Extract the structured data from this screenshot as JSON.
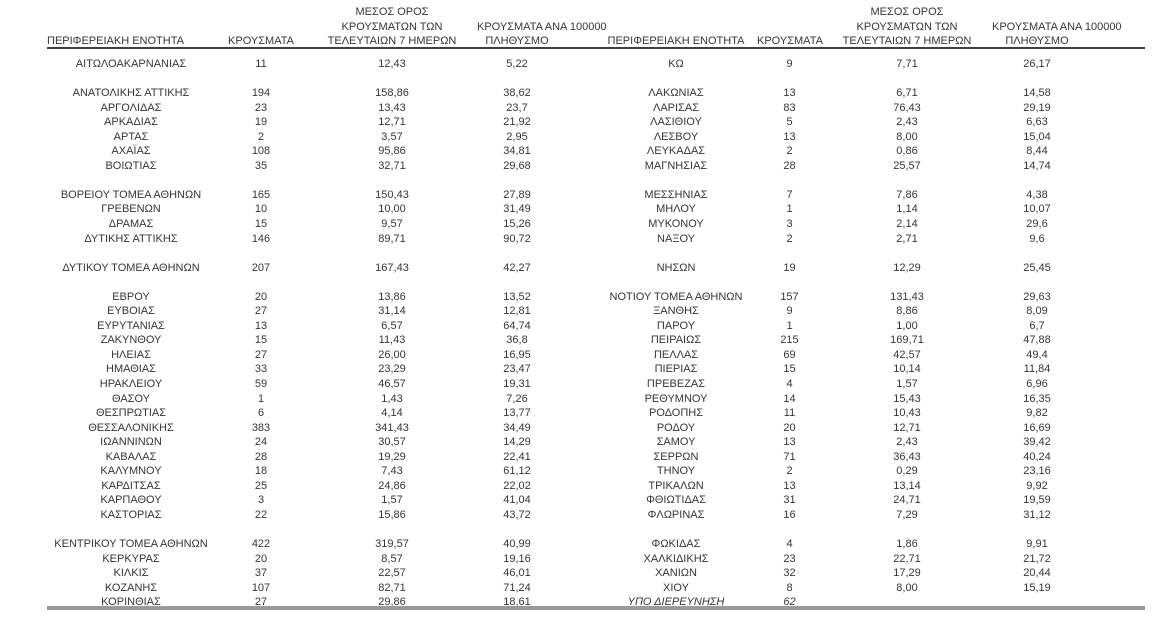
{
  "colors": {
    "background": "#ffffff",
    "text": "#363636",
    "header_rule": "#3f3f3f",
    "bottom_rule": "#9a9a9a"
  },
  "table": {
    "headers": {
      "region": "ΠΕΡΙΦΕΡΕΙΑΚΗ ΕΝΟΤΗΤΑ",
      "cases": "ΚΡΟΥΣΜΑΤΑ",
      "avg7_lines": [
        "ΜΕΣΟΣ ΟΡΟΣ",
        "ΚΡΟΥΣΜΑΤΩΝ ΤΩΝ",
        "ΤΕΛΕΥΤΑΙΩΝ 7 ΗΜΕΡΩΝ"
      ],
      "per100k_lines": [
        "ΚΡΟΥΣΜΑΤΑ ΑΝΑ 100000",
        "ΠΛΗΘΥΣΜΟ"
      ]
    },
    "rows": [
      {
        "l": [
          "ΑΙΤΩΛΟΑΚΑΡΝΑΝΙΑΣ",
          "11",
          "12,43",
          "5,22"
        ],
        "r": [
          "ΚΩ",
          "9",
          "7,71",
          "26,17"
        ]
      },
      {
        "spacer": true
      },
      {
        "l": [
          "ΑΝΑΤΟΛΙΚΗΣ ΑΤΤΙΚΗΣ",
          "194",
          "158,86",
          "38,62"
        ],
        "r": [
          "ΛΑΚΩΝΙΑΣ",
          "13",
          "6,71",
          "14,58"
        ]
      },
      {
        "l": [
          "ΑΡΓΟΛΙΔΑΣ",
          "23",
          "13,43",
          "23,7"
        ],
        "r": [
          "ΛΑΡΙΣΑΣ",
          "83",
          "76,43",
          "29,19"
        ]
      },
      {
        "l": [
          "ΑΡΚΑΔΙΑΣ",
          "19",
          "12,71",
          "21,92"
        ],
        "r": [
          "ΛΑΣΙΘΙΟΥ",
          "5",
          "2,43",
          "6,63"
        ]
      },
      {
        "l": [
          "ΑΡΤΑΣ",
          "2",
          "3,57",
          "2,95"
        ],
        "r": [
          "ΛΕΣΒΟΥ",
          "13",
          "8,00",
          "15,04"
        ]
      },
      {
        "l": [
          "ΑΧΑΪΑΣ",
          "108",
          "95,86",
          "34,81"
        ],
        "r": [
          "ΛΕΥΚΑΔΑΣ",
          "2",
          "0,86",
          "8,44"
        ]
      },
      {
        "l": [
          "ΒΟΙΩΤΙΑΣ",
          "35",
          "32,71",
          "29,68"
        ],
        "r": [
          "ΜΑΓΝΗΣΙΑΣ",
          "28",
          "25,57",
          "14,74"
        ]
      },
      {
        "spacer": true
      },
      {
        "l": [
          "ΒΟΡΕΙΟΥ ΤΟΜΕΑ ΑΘΗΝΩΝ",
          "165",
          "150,43",
          "27,89"
        ],
        "r": [
          "ΜΕΣΣΗΝΙΑΣ",
          "7",
          "7,86",
          "4,38"
        ]
      },
      {
        "l": [
          "ΓΡΕΒΕΝΩΝ",
          "10",
          "10,00",
          "31,49"
        ],
        "r": [
          "ΜΗΛΟΥ",
          "1",
          "1,14",
          "10,07"
        ]
      },
      {
        "l": [
          "ΔΡΑΜΑΣ",
          "15",
          "9,57",
          "15,26"
        ],
        "r": [
          "ΜΥΚΟΝΟΥ",
          "3",
          "2,14",
          "29,6"
        ]
      },
      {
        "l": [
          "ΔΥΤΙΚΗΣ ΑΤΤΙΚΗΣ",
          "146",
          "89,71",
          "90,72"
        ],
        "r": [
          "ΝΑΞΟΥ",
          "2",
          "2,71",
          "9,6"
        ]
      },
      {
        "spacer": true
      },
      {
        "l": [
          "ΔΥΤΙΚΟΥ ΤΟΜΕΑ ΑΘΗΝΩΝ",
          "207",
          "167,43",
          "42,27"
        ],
        "r": [
          "ΝΗΣΩΝ",
          "19",
          "12,29",
          "25,45"
        ]
      },
      {
        "spacer": true
      },
      {
        "l": [
          "ΕΒΡΟΥ",
          "20",
          "13,86",
          "13,52"
        ],
        "r": [
          "ΝΟΤΙΟΥ ΤΟΜΕΑ ΑΘΗΝΩΝ",
          "157",
          "131,43",
          "29,63"
        ]
      },
      {
        "l": [
          "ΕΥΒΟΙΑΣ",
          "27",
          "31,14",
          "12,81"
        ],
        "r": [
          "ΞΑΝΘΗΣ",
          "9",
          "8,86",
          "8,09"
        ]
      },
      {
        "l": [
          "ΕΥΡΥΤΑΝΙΑΣ",
          "13",
          "6,57",
          "64,74"
        ],
        "r": [
          "ΠΑΡΟΥ",
          "1",
          "1,00",
          "6,7"
        ]
      },
      {
        "l": [
          "ΖΑΚΥΝΘΟΥ",
          "15",
          "11,43",
          "36,8"
        ],
        "r": [
          "ΠΕΙΡΑΙΩΣ",
          "215",
          "169,71",
          "47,88"
        ]
      },
      {
        "l": [
          "ΗΛΕΙΑΣ",
          "27",
          "26,00",
          "16,95"
        ],
        "r": [
          "ΠΕΛΛΑΣ",
          "69",
          "42,57",
          "49,4"
        ]
      },
      {
        "l": [
          "ΗΜΑΘΙΑΣ",
          "33",
          "23,29",
          "23,47"
        ],
        "r": [
          "ΠΙΕΡΙΑΣ",
          "15",
          "10,14",
          "11,84"
        ]
      },
      {
        "l": [
          "ΗΡΑΚΛΕΙΟΥ",
          "59",
          "46,57",
          "19,31"
        ],
        "r": [
          "ΠΡΕΒΕΖΑΣ",
          "4",
          "1,57",
          "6,96"
        ]
      },
      {
        "l": [
          "ΘΑΣΟΥ",
          "1",
          "1,43",
          "7,26"
        ],
        "r": [
          "ΡΕΘΥΜΝΟΥ",
          "14",
          "15,43",
          "16,35"
        ]
      },
      {
        "l": [
          "ΘΕΣΠΡΩΤΙΑΣ",
          "6",
          "4,14",
          "13,77"
        ],
        "r": [
          "ΡΟΔΟΠΗΣ",
          "11",
          "10,43",
          "9,82"
        ]
      },
      {
        "l": [
          "ΘΕΣΣΑΛΟΝΙΚΗΣ",
          "383",
          "341,43",
          "34,49"
        ],
        "r": [
          "ΡΟΔΟΥ",
          "20",
          "12,71",
          "16,69"
        ]
      },
      {
        "l": [
          "ΙΩΑΝΝΙΝΩΝ",
          "24",
          "30,57",
          "14,29"
        ],
        "r": [
          "ΣΑΜΟΥ",
          "13",
          "2,43",
          "39,42"
        ]
      },
      {
        "l": [
          "ΚΑΒΑΛΑΣ",
          "28",
          "19,29",
          "22,41"
        ],
        "r": [
          "ΣΕΡΡΩΝ",
          "71",
          "36,43",
          "40,24"
        ]
      },
      {
        "l": [
          "ΚΑΛΥΜΝΟΥ",
          "18",
          "7,43",
          "61,12"
        ],
        "r": [
          "ΤΗΝΟΥ",
          "2",
          "0,29",
          "23,16"
        ]
      },
      {
        "l": [
          "ΚΑΡΔΙΤΣΑΣ",
          "25",
          "24,86",
          "22,02"
        ],
        "r": [
          "ΤΡΙΚΑΛΩΝ",
          "13",
          "13,14",
          "9,92"
        ]
      },
      {
        "l": [
          "ΚΑΡΠΑΘΟΥ",
          "3",
          "1,57",
          "41,04"
        ],
        "r": [
          "ΦΘΙΩΤΙΔΑΣ",
          "31",
          "24,71",
          "19,59"
        ]
      },
      {
        "l": [
          "ΚΑΣΤΟΡΙΑΣ",
          "22",
          "15,86",
          "43,72"
        ],
        "r": [
          "ΦΛΩΡΙΝΑΣ",
          "16",
          "7,29",
          "31,12"
        ]
      },
      {
        "spacer": true
      },
      {
        "l": [
          "ΚΕΝΤΡΙΚΟΥ ΤΟΜΕΑ ΑΘΗΝΩΝ",
          "422",
          "319,57",
          "40,99"
        ],
        "r": [
          "ΦΩΚΙΔΑΣ",
          "4",
          "1,86",
          "9,91"
        ]
      },
      {
        "l": [
          "ΚΕΡΚΥΡΑΣ",
          "20",
          "8,57",
          "19,16"
        ],
        "r": [
          "ΧΑΛΚΙΔΙΚΗΣ",
          "23",
          "22,71",
          "21,72"
        ]
      },
      {
        "l": [
          "ΚΙΛΚΙΣ",
          "37",
          "22,57",
          "46,01"
        ],
        "r": [
          "ΧΑΝΙΩΝ",
          "32",
          "17,29",
          "20,44"
        ]
      },
      {
        "l": [
          "ΚΟΖΑΝΗΣ",
          "107",
          "82,71",
          "71,24"
        ],
        "r": [
          "ΧΙΟΥ",
          "8",
          "8,00",
          "15,19"
        ]
      },
      {
        "l": [
          "ΚΟΡΙΝΘΙΑΣ",
          "27",
          "29,86",
          "18,61"
        ],
        "r": [
          "ΥΠΟ ΔΙΕΡΕΥΝΗΣΗ",
          "62",
          "",
          ""
        ],
        "r_italic": true
      }
    ]
  }
}
